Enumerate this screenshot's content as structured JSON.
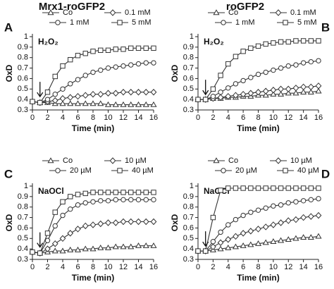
{
  "chart_data": [
    {
      "type": "line",
      "panel_label": "A",
      "title": "Mrx1-roGFP2",
      "annotation": "H₂O₂",
      "ylabel": "OxD",
      "xlabel": "Time (min)",
      "x": [
        0,
        1,
        2,
        3,
        4,
        5,
        6,
        7,
        8,
        9,
        10,
        11,
        12,
        13,
        14,
        15,
        16
      ],
      "arrow_x": 1,
      "xlim": [
        0,
        16
      ],
      "xticks": [
        0,
        2,
        4,
        6,
        8,
        10,
        12,
        14,
        16
      ],
      "ylim": [
        0.3,
        1
      ],
      "yticks": [
        0.3,
        0.4,
        0.5,
        0.6,
        0.7,
        0.8,
        0.9,
        1
      ],
      "series": [
        {
          "name": "Co",
          "color": "#333333",
          "marker": "triangle",
          "values": [
            0.38,
            0.37,
            0.37,
            0.36,
            0.36,
            0.36,
            0.36,
            0.36,
            0.36,
            0.36,
            0.35,
            0.35,
            0.35,
            0.35,
            0.35,
            0.35,
            0.35
          ]
        },
        {
          "name": "0.1 mM",
          "color": "#333333",
          "marker": "diamond",
          "values": [
            0.38,
            0.37,
            0.38,
            0.39,
            0.41,
            0.42,
            0.43,
            0.44,
            0.45,
            0.45,
            0.46,
            0.46,
            0.47,
            0.47,
            0.47,
            0.47,
            0.47
          ]
        },
        {
          "name": "1 mM",
          "color": "#333333",
          "marker": "circle",
          "values": [
            0.38,
            0.37,
            0.4,
            0.45,
            0.5,
            0.55,
            0.59,
            0.63,
            0.66,
            0.68,
            0.7,
            0.71,
            0.72,
            0.73,
            0.74,
            0.75,
            0.75
          ]
        },
        {
          "name": "5 mM",
          "color": "#333333",
          "marker": "square",
          "values": [
            0.38,
            0.37,
            0.47,
            0.62,
            0.72,
            0.78,
            0.82,
            0.84,
            0.86,
            0.87,
            0.87,
            0.88,
            0.88,
            0.89,
            0.89,
            0.89,
            0.89
          ]
        }
      ]
    },
    {
      "type": "line",
      "panel_label": "B",
      "title": "roGFP2",
      "annotation": "H₂O₂",
      "ylabel": "OxD",
      "xlabel": "Time (min)",
      "x": [
        0,
        1,
        2,
        3,
        4,
        5,
        6,
        7,
        8,
        9,
        10,
        11,
        12,
        13,
        14,
        15,
        16
      ],
      "arrow_x": 1,
      "xlim": [
        0,
        16
      ],
      "xticks": [
        0,
        2,
        4,
        6,
        8,
        10,
        12,
        14,
        16
      ],
      "ylim": [
        0.3,
        1
      ],
      "yticks": [
        0.3,
        0.4,
        0.5,
        0.6,
        0.7,
        0.8,
        0.9,
        1
      ],
      "series": [
        {
          "name": "Co",
          "color": "#333333",
          "marker": "triangle",
          "values": [
            0.4,
            0.4,
            0.41,
            0.41,
            0.42,
            0.42,
            0.43,
            0.43,
            0.44,
            0.44,
            0.45,
            0.45,
            0.46,
            0.46,
            0.47,
            0.47,
            0.48
          ]
        },
        {
          "name": "0.1 mM",
          "color": "#333333",
          "marker": "diamond",
          "values": [
            0.4,
            0.4,
            0.41,
            0.42,
            0.43,
            0.44,
            0.45,
            0.46,
            0.47,
            0.48,
            0.49,
            0.5,
            0.5,
            0.51,
            0.52,
            0.52,
            0.53
          ]
        },
        {
          "name": "1 mM",
          "color": "#333333",
          "marker": "circle",
          "values": [
            0.4,
            0.4,
            0.43,
            0.47,
            0.51,
            0.55,
            0.58,
            0.61,
            0.64,
            0.66,
            0.68,
            0.7,
            0.72,
            0.73,
            0.75,
            0.76,
            0.77
          ]
        },
        {
          "name": "5 mM",
          "color": "#333333",
          "marker": "square",
          "values": [
            0.4,
            0.4,
            0.5,
            0.63,
            0.74,
            0.81,
            0.86,
            0.89,
            0.91,
            0.93,
            0.94,
            0.95,
            0.95,
            0.96,
            0.96,
            0.96,
            0.96
          ]
        }
      ]
    },
    {
      "type": "line",
      "panel_label": "C",
      "annotation": "NaOCl",
      "ylabel": "OxD",
      "xlabel": "Time (min)",
      "x": [
        0,
        1,
        2,
        3,
        4,
        5,
        6,
        7,
        8,
        9,
        10,
        11,
        12,
        13,
        14,
        15,
        16
      ],
      "arrow_x": 1,
      "xlim": [
        0,
        16
      ],
      "xticks": [
        0,
        2,
        4,
        6,
        8,
        10,
        12,
        14,
        16
      ],
      "ylim": [
        0.3,
        1
      ],
      "yticks": [
        0.3,
        0.4,
        0.5,
        0.6,
        0.7,
        0.8,
        0.9,
        1
      ],
      "series": [
        {
          "name": "Co",
          "color": "#333333",
          "marker": "triangle",
          "values": [
            0.37,
            0.36,
            0.37,
            0.38,
            0.38,
            0.39,
            0.39,
            0.4,
            0.4,
            0.41,
            0.41,
            0.42,
            0.42,
            0.42,
            0.43,
            0.43,
            0.43
          ]
        },
        {
          "name": "10 µM",
          "color": "#333333",
          "marker": "diamond",
          "values": [
            0.37,
            0.36,
            0.4,
            0.45,
            0.5,
            0.55,
            0.59,
            0.62,
            0.63,
            0.64,
            0.65,
            0.65,
            0.66,
            0.66,
            0.66,
            0.66,
            0.66
          ]
        },
        {
          "name": "20 µM",
          "color": "#333333",
          "marker": "circle",
          "values": [
            0.37,
            0.36,
            0.48,
            0.62,
            0.72,
            0.78,
            0.82,
            0.84,
            0.85,
            0.86,
            0.86,
            0.87,
            0.87,
            0.87,
            0.87,
            0.87,
            0.87
          ]
        },
        {
          "name": "40 µM",
          "color": "#333333",
          "marker": "square",
          "values": [
            0.37,
            0.36,
            0.55,
            0.75,
            0.85,
            0.9,
            0.92,
            0.93,
            0.94,
            0.94,
            0.94,
            0.94,
            0.94,
            0.94,
            0.94,
            0.94,
            0.94
          ]
        }
      ]
    },
    {
      "type": "line",
      "panel_label": "D",
      "annotation": "NaOCl",
      "ylabel": "OxD",
      "xlabel": "Time (min)",
      "x": [
        0,
        1,
        2,
        3,
        4,
        5,
        6,
        7,
        8,
        9,
        10,
        11,
        12,
        13,
        14,
        15,
        16
      ],
      "arrow_x": 1,
      "xlim": [
        0,
        16
      ],
      "xticks": [
        0,
        2,
        4,
        6,
        8,
        10,
        12,
        14,
        16
      ],
      "ylim": [
        0.3,
        1
      ],
      "yticks": [
        0.3,
        0.4,
        0.5,
        0.6,
        0.7,
        0.8,
        0.9,
        1
      ],
      "series": [
        {
          "name": "Co",
          "color": "#333333",
          "marker": "triangle",
          "values": [
            0.38,
            0.38,
            0.39,
            0.4,
            0.41,
            0.42,
            0.43,
            0.44,
            0.45,
            0.46,
            0.47,
            0.48,
            0.49,
            0.5,
            0.51,
            0.51,
            0.52
          ]
        },
        {
          "name": "10 µM",
          "color": "#333333",
          "marker": "diamond",
          "values": [
            0.38,
            0.38,
            0.42,
            0.46,
            0.49,
            0.52,
            0.55,
            0.57,
            0.59,
            0.61,
            0.63,
            0.65,
            0.67,
            0.68,
            0.7,
            0.71,
            0.72
          ]
        },
        {
          "name": "20 µM",
          "color": "#333333",
          "marker": "circle",
          "values": [
            0.38,
            0.38,
            0.47,
            0.56,
            0.63,
            0.68,
            0.72,
            0.75,
            0.77,
            0.79,
            0.81,
            0.82,
            0.84,
            0.85,
            0.86,
            0.87,
            0.88
          ]
        },
        {
          "name": "40 µM",
          "color": "#333333",
          "marker": "square",
          "values": [
            0.38,
            0.38,
            0.7,
            0.96,
            0.98,
            0.98,
            0.98,
            0.98,
            0.98,
            0.98,
            0.98,
            0.98,
            0.98,
            0.98,
            0.98,
            0.98,
            0.98
          ]
        }
      ]
    }
  ]
}
